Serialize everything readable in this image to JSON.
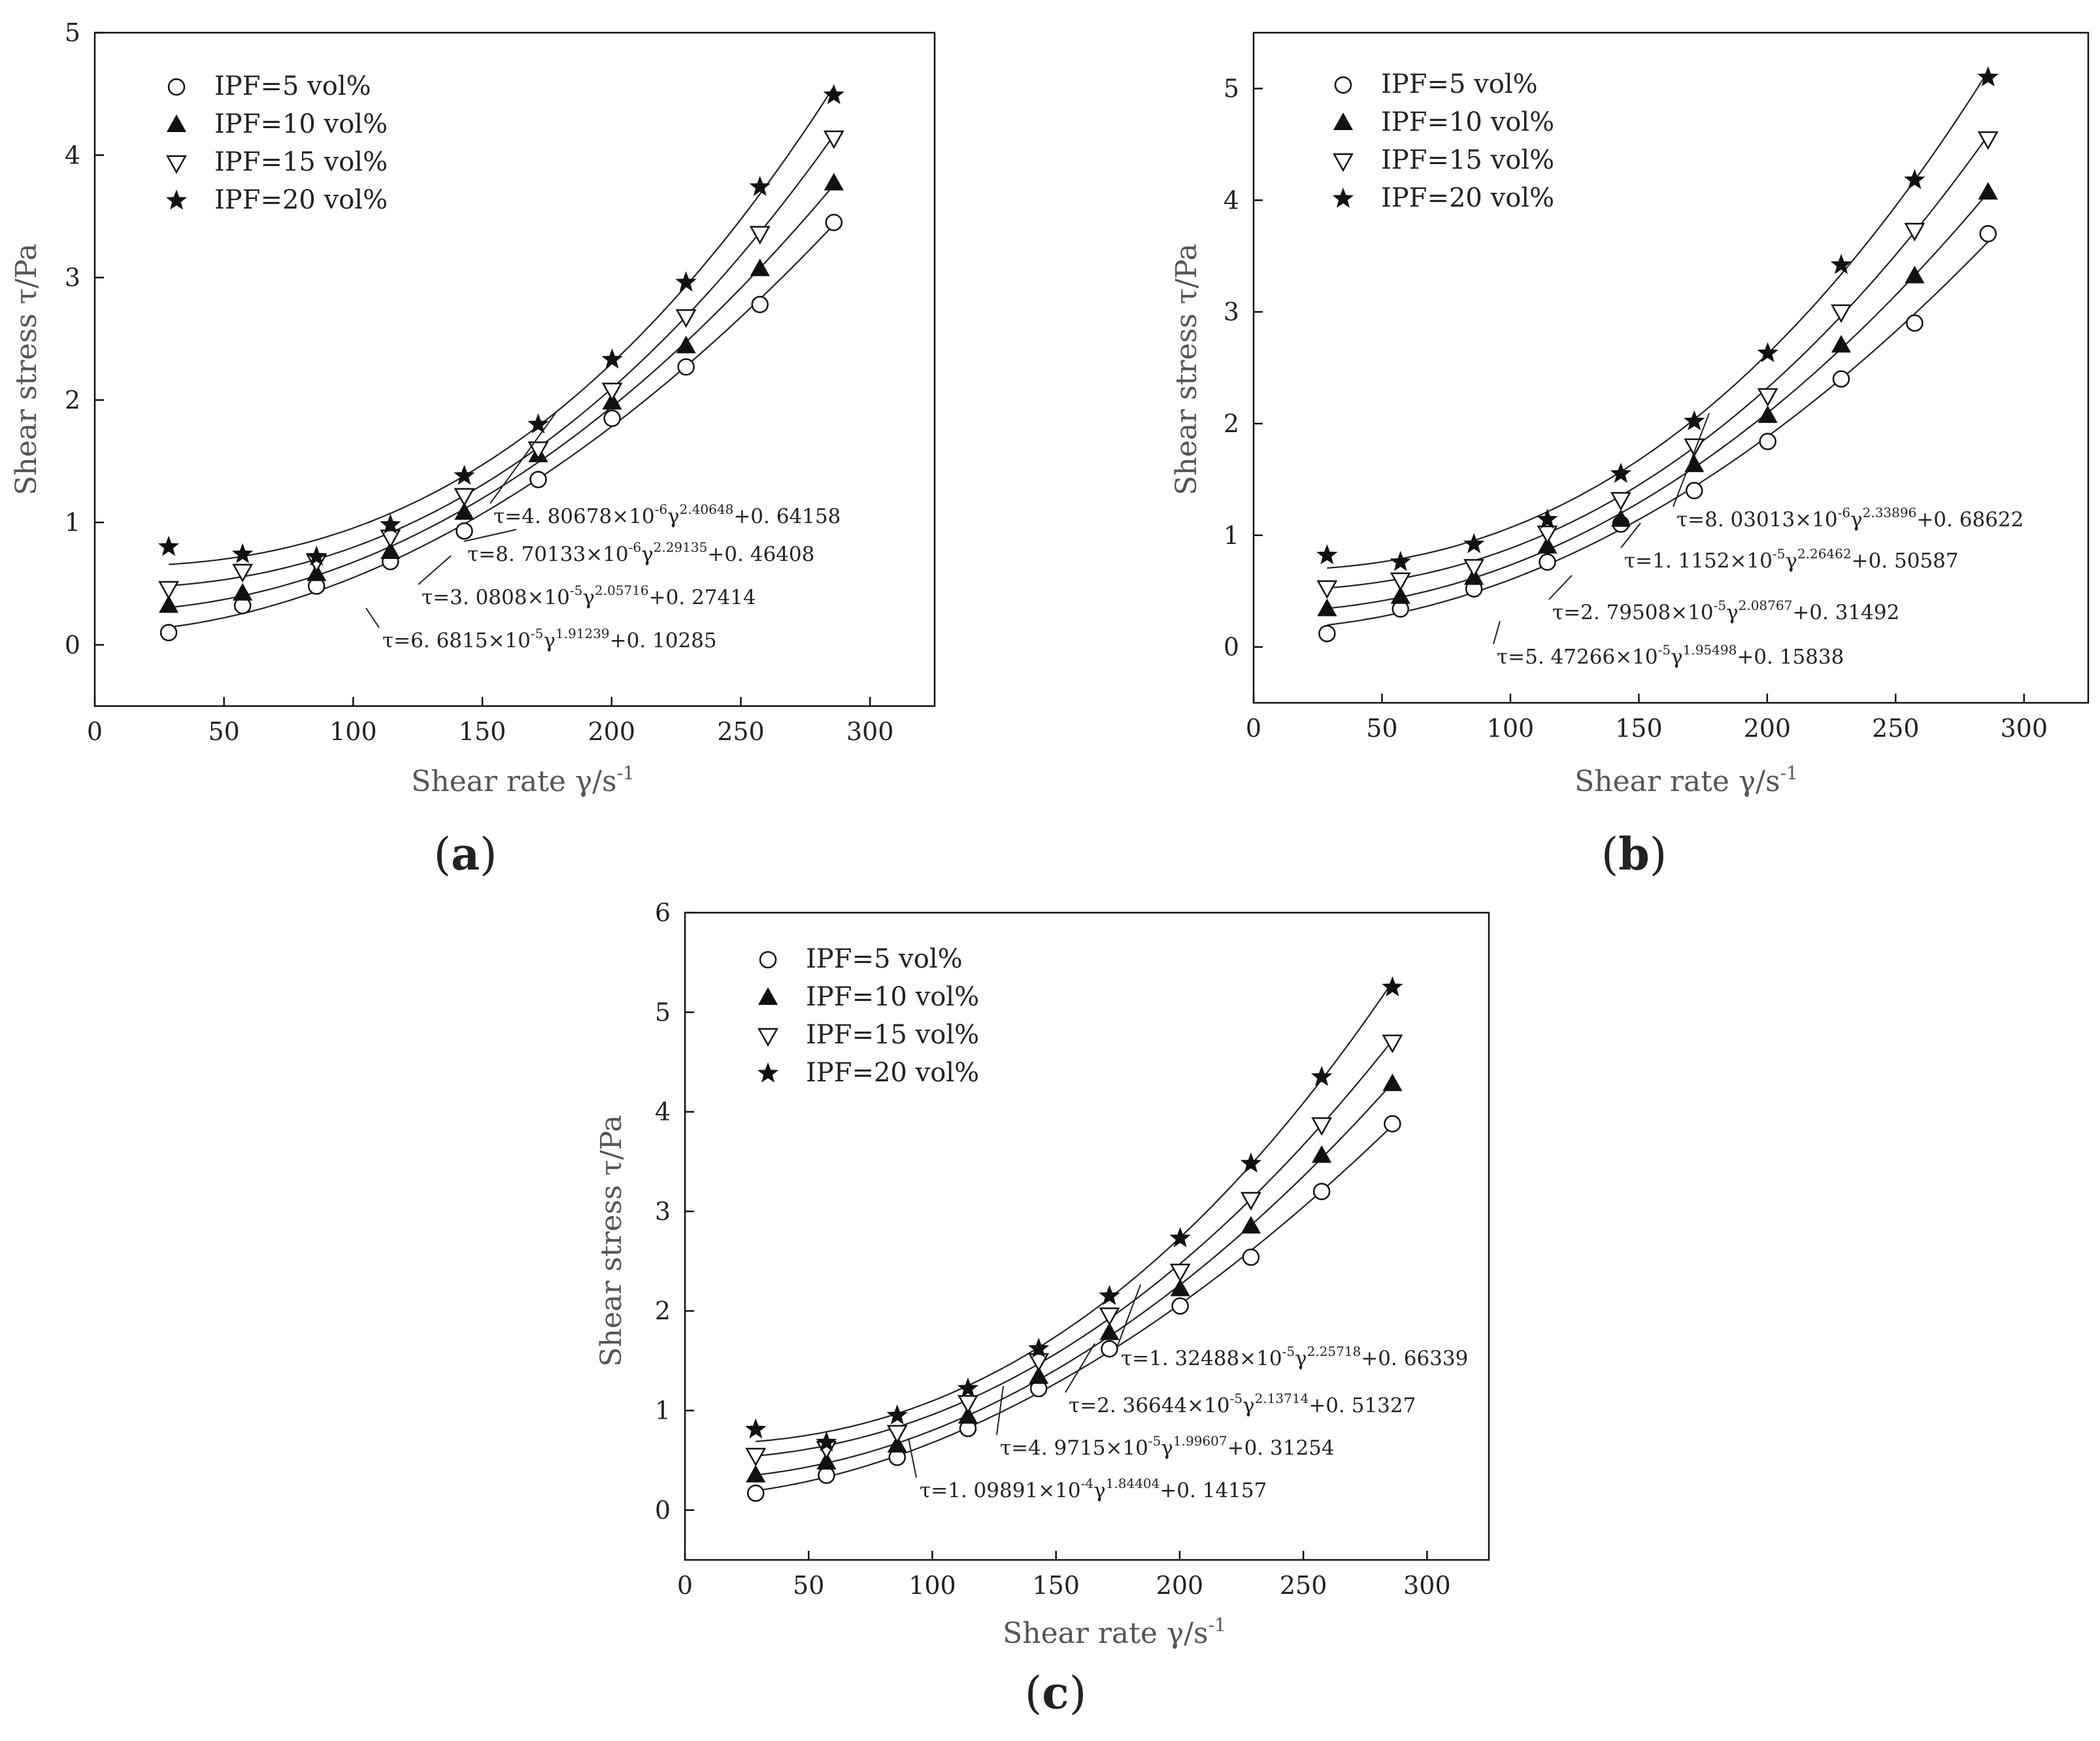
{
  "panels": [
    {
      "label_open": "(",
      "label_letter": "a",
      "label_close": ")",
      "xlabel": "Shear rate γ/s",
      "xlabel_sup": "-1",
      "ylabel": "Shear stress τ/Pa",
      "xlim": [
        0,
        325
      ],
      "ylim": [
        -0.5,
        5
      ],
      "xticks": [
        "0",
        "50",
        "100",
        "150",
        "200",
        "250",
        "300"
      ],
      "yticks": [
        "0",
        "1",
        "2",
        "3",
        "4",
        "5"
      ],
      "legend": [
        "IPF=5 vol%",
        "IPF=10 vol%",
        "IPF=15 vol%",
        "IPF=20 vol%"
      ],
      "equations": [
        {
          "t1": "τ=6. 6815×10",
          "s1": "-5",
          "t2": "γ",
          "s2": "1.91239",
          "t3": "+0. 10285"
        },
        {
          "t1": "τ=3. 0808×10",
          "s1": "-5",
          "t2": "γ",
          "s2": "2.05716",
          "t3": "+0. 27414"
        },
        {
          "t1": "τ=8. 70133×10",
          "s1": "-6",
          "t2": "γ",
          "s2": "2.29135",
          "t3": "+0. 46408"
        },
        {
          "t1": "τ=4. 80678×10",
          "s1": "-6",
          "t2": "γ",
          "s2": "2.40648",
          "t3": "+0. 64158"
        }
      ]
    },
    {
      "label_open": "(",
      "label_letter": "b",
      "label_close": ")",
      "xlabel": "Shear rate γ/s",
      "xlabel_sup": "-1",
      "ylabel": "Shear stress τ/Pa",
      "xlim": [
        0,
        325
      ],
      "ylim": [
        -0.5,
        5.5
      ],
      "xticks": [
        "0",
        "50",
        "100",
        "150",
        "200",
        "250",
        "300"
      ],
      "yticks": [
        "0",
        "1",
        "2",
        "3",
        "4",
        "5"
      ],
      "legend": [
        "IPF=5 vol%",
        "IPF=10 vol%",
        "IPF=15 vol%",
        "IPF=20 vol%"
      ],
      "equations": [
        {
          "t1": "τ=5. 47266×10",
          "s1": "-5",
          "t2": "γ",
          "s2": "1.95498",
          "t3": "+0. 15838"
        },
        {
          "t1": "τ=2. 79508×10",
          "s1": "-5",
          "t2": "γ",
          "s2": "2.08767",
          "t3": "+0. 31492"
        },
        {
          "t1": "τ=1. 1152×10",
          "s1": "-5",
          "t2": "γ",
          "s2": "2.26462",
          "t3": "+0. 50587"
        },
        {
          "t1": "τ=8. 03013×10",
          "s1": "-6",
          "t2": "γ",
          "s2": "2.33896",
          "t3": "+0. 68622"
        }
      ]
    },
    {
      "label_open": "(",
      "label_letter": "c",
      "label_close": ")",
      "xlabel": "Shear rate γ/s",
      "xlabel_sup": "-1",
      "ylabel": "Shear stress τ/Pa",
      "xlim": [
        0,
        325
      ],
      "ylim": [
        -0.5,
        6
      ],
      "xticks": [
        "0",
        "50",
        "100",
        "150",
        "200",
        "250",
        "300"
      ],
      "yticks": [
        "0",
        "1",
        "2",
        "3",
        "4",
        "5",
        "6"
      ],
      "legend": [
        "IPF=5 vol%",
        "IPF=10 vol%",
        "IPF=15 vol%",
        "IPF=20 vol%"
      ],
      "equations": [
        {
          "t1": "τ=1. 09891×10",
          "s1": "-4",
          "t2": "γ",
          "s2": "1.84404",
          "t3": "+0. 14157"
        },
        {
          "t1": "τ=4. 9715×10",
          "s1": "-5",
          "t2": "γ",
          "s2": "1.99607",
          "t3": "+0. 31254"
        },
        {
          "t1": "τ=2. 36644×10",
          "s1": "-5",
          "t2": "γ",
          "s2": "2.13714",
          "t3": "+0. 51327"
        },
        {
          "t1": "τ=1. 32488×10",
          "s1": "-5",
          "t2": "γ",
          "s2": "2.25718",
          "t3": "+0. 66339"
        }
      ]
    }
  ],
  "chart_data": [
    {
      "type": "scatter",
      "x": [
        28.6,
        57.2,
        85.8,
        114.4,
        143,
        171.6,
        200.2,
        228.8,
        257.4,
        286
      ],
      "xlim": [
        0,
        325
      ],
      "ylim": [
        -0.5,
        5
      ],
      "legend_position": "top-left",
      "series": [
        {
          "name": "IPF=5 vol%",
          "marker": "circle-open",
          "values": [
            0.1,
            0.32,
            0.48,
            0.68,
            0.93,
            1.35,
            1.85,
            2.27,
            2.78,
            3.45
          ],
          "fit": {
            "a": 6.6815e-05,
            "n": 1.91239,
            "c": 0.10285
          }
        },
        {
          "name": "IPF=10 vol%",
          "marker": "triangle-filled",
          "values": [
            0.32,
            0.42,
            0.58,
            0.76,
            1.08,
            1.55,
            1.98,
            2.44,
            3.07,
            3.77
          ],
          "fit": {
            "a": 3.0808e-05,
            "n": 2.05716,
            "c": 0.27414
          }
        },
        {
          "name": "IPF=15 vol%",
          "marker": "triangle-down-open",
          "values": [
            0.46,
            0.6,
            0.68,
            0.88,
            1.22,
            1.6,
            2.08,
            2.68,
            3.36,
            4.14
          ],
          "fit": {
            "a": 8.70133e-06,
            "n": 2.29135,
            "c": 0.46408
          }
        },
        {
          "name": "IPF=20 vol%",
          "marker": "star-filled",
          "values": [
            0.8,
            0.74,
            0.72,
            0.98,
            1.38,
            1.8,
            2.33,
            2.96,
            3.74,
            4.49
          ],
          "fit": {
            "a": 4.80678e-06,
            "n": 2.40648,
            "c": 0.64158
          }
        }
      ]
    },
    {
      "type": "scatter",
      "x": [
        28.6,
        57.2,
        85.8,
        114.4,
        143,
        171.6,
        200.2,
        228.8,
        257.4,
        286
      ],
      "xlim": [
        0,
        325
      ],
      "ylim": [
        -0.5,
        5.5
      ],
      "legend_position": "top-left",
      "series": [
        {
          "name": "IPF=5 vol%",
          "marker": "circle-open",
          "values": [
            0.12,
            0.34,
            0.52,
            0.76,
            1.1,
            1.4,
            1.84,
            2.4,
            2.9,
            3.7
          ],
          "fit": {
            "a": 5.47266e-05,
            "n": 1.95498,
            "c": 0.15838
          }
        },
        {
          "name": "IPF=10 vol%",
          "marker": "triangle-filled",
          "values": [
            0.34,
            0.45,
            0.62,
            0.9,
            1.14,
            1.63,
            2.07,
            2.7,
            3.32,
            4.07
          ],
          "fit": {
            "a": 2.79508e-05,
            "n": 2.08767,
            "c": 0.31492
          }
        },
        {
          "name": "IPF=15 vol%",
          "marker": "triangle-down-open",
          "values": [
            0.53,
            0.6,
            0.72,
            1.02,
            1.32,
            1.8,
            2.25,
            3.0,
            3.73,
            4.55
          ],
          "fit": {
            "a": 1.1152e-05,
            "n": 2.26462,
            "c": 0.50587
          }
        },
        {
          "name": "IPF=20 vol%",
          "marker": "star-filled",
          "values": [
            0.82,
            0.76,
            0.92,
            1.14,
            1.55,
            2.02,
            2.63,
            3.42,
            4.18,
            5.1
          ],
          "fit": {
            "a": 8.03013e-06,
            "n": 2.33896,
            "c": 0.68622
          }
        }
      ]
    },
    {
      "type": "scatter",
      "x": [
        28.6,
        57.2,
        85.8,
        114.4,
        143,
        171.6,
        200.2,
        228.8,
        257.4,
        286
      ],
      "xlim": [
        0,
        325
      ],
      "ylim": [
        -0.5,
        6
      ],
      "legend_position": "top-left",
      "series": [
        {
          "name": "IPF=5 vol%",
          "marker": "circle-open",
          "values": [
            0.17,
            0.35,
            0.53,
            0.82,
            1.22,
            1.62,
            2.05,
            2.54,
            3.2,
            3.88
          ],
          "fit": {
            "a": 0.000109891,
            "n": 1.84404,
            "c": 0.14157
          }
        },
        {
          "name": "IPF=10 vol%",
          "marker": "triangle-filled",
          "values": [
            0.35,
            0.48,
            0.65,
            0.94,
            1.34,
            1.78,
            2.22,
            2.85,
            3.56,
            4.28
          ],
          "fit": {
            "a": 4.9715e-05,
            "n": 1.99607,
            "c": 0.31254
          }
        },
        {
          "name": "IPF=15 vol%",
          "marker": "triangle-down-open",
          "values": [
            0.55,
            0.62,
            0.78,
            1.08,
            1.5,
            1.96,
            2.4,
            3.12,
            3.87,
            4.7
          ],
          "fit": {
            "a": 2.36644e-05,
            "n": 2.13714,
            "c": 0.51327
          }
        },
        {
          "name": "IPF=20 vol%",
          "marker": "star-filled",
          "values": [
            0.81,
            0.68,
            0.95,
            1.22,
            1.62,
            2.15,
            2.73,
            3.48,
            4.35,
            5.25
          ],
          "fit": {
            "a": 1.32488e-05,
            "n": 2.25718,
            "c": 0.66339
          }
        }
      ]
    }
  ]
}
